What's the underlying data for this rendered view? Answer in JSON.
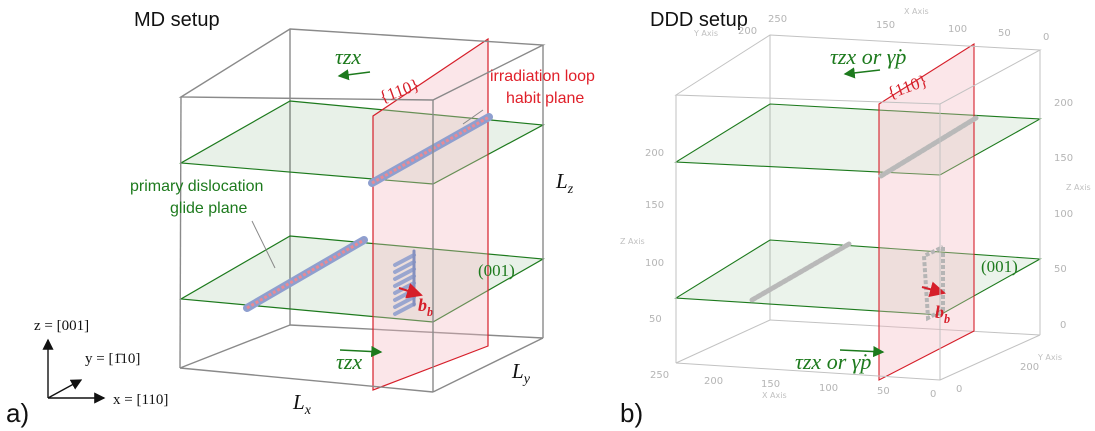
{
  "panel_a": {
    "title": "MD setup",
    "label": "a)",
    "tau_top": "τzx",
    "tau_bottom": "τzx",
    "plane_110": "{110}",
    "plane_001": "(001)",
    "irradiation_line1": "irradiation loop",
    "irradiation_line2": "habit plane",
    "glide_line1": "primary dislocation",
    "glide_line2": "glide plane",
    "Lz": "Lz",
    "Ly": "Ly",
    "Lx": "Lx",
    "bb": "bb",
    "axis_z": "z = [001]",
    "axis_y": "y = [1̄10]",
    "axis_x": "x = [110]"
  },
  "panel_b": {
    "title": "DDD setup",
    "label": "b)",
    "tau_top": "τzx or γ̇p",
    "tau_bottom": "τzx or γ̇p",
    "plane_110": "{110}",
    "plane_001": "(001)",
    "bb": "bb",
    "x_axis_name": "X Axis",
    "y_axis_name": "Y Axis",
    "z_axis_name": "Z Axis",
    "top_y_ticks": [
      "250",
      "200"
    ],
    "top_x_ticks": [
      "150",
      "100",
      "50",
      "0"
    ],
    "left_z_ticks": [
      "200",
      "150",
      "100",
      "50"
    ],
    "right_z_ticks": [
      "200",
      "150",
      "100",
      "50",
      "0"
    ],
    "bottom_x_ticks": [
      "250",
      "200",
      "150",
      "100",
      "50",
      "0"
    ],
    "bottom_y_ticks": [
      "200",
      "0"
    ]
  },
  "colors": {
    "green": "#1d7a1d",
    "red": "#d61f2a",
    "box": "#8a8a8a"
  }
}
